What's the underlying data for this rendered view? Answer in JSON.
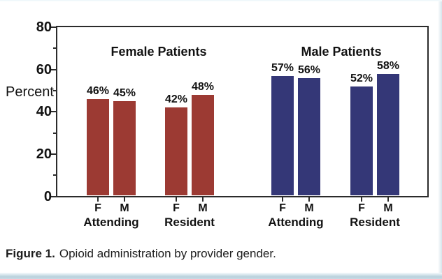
{
  "figure": {
    "caption_label": "Figure 1.",
    "caption_text": "Opioid administration by provider gender."
  },
  "chart_data": {
    "type": "bar",
    "title": "Opioid administration by provider gender",
    "ylabel": "Percent",
    "ylim": [
      0,
      80
    ],
    "yticks_major": [
      0,
      20,
      40,
      60,
      80
    ],
    "yticks_minor": [
      10,
      30,
      50,
      70
    ],
    "grid": false,
    "value_label_suffix": "%",
    "frame_color": "#2b2b2b",
    "groups": [
      {
        "patient_gender": "Female Patients",
        "color": "#9c3a33",
        "clusters": [
          {
            "provider_type": "Attending",
            "bars": [
              {
                "provider_gender": "F",
                "value": 46
              },
              {
                "provider_gender": "M",
                "value": 45
              }
            ]
          },
          {
            "provider_type": "Resident",
            "bars": [
              {
                "provider_gender": "F",
                "value": 42
              },
              {
                "provider_gender": "M",
                "value": 48
              }
            ]
          }
        ]
      },
      {
        "patient_gender": "Male Patients",
        "color": "#343777",
        "clusters": [
          {
            "provider_type": "Attending",
            "bars": [
              {
                "provider_gender": "F",
                "value": 57
              },
              {
                "provider_gender": "M",
                "value": 56
              }
            ]
          },
          {
            "provider_type": "Resident",
            "bars": [
              {
                "provider_gender": "F",
                "value": 52
              },
              {
                "provider_gender": "M",
                "value": 58
              }
            ]
          }
        ]
      }
    ]
  }
}
